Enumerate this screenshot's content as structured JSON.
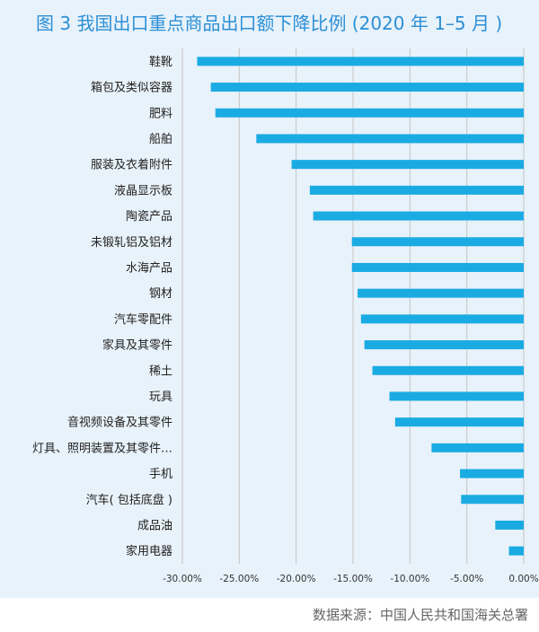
{
  "chart_data": {
    "type": "bar",
    "orientation": "horizontal",
    "title": "图 3  我国出口重点商品出口额下降比例 (2020 年 1–5 月 )",
    "categories": [
      "鞋靴",
      "箱包及类似容器",
      "肥料",
      "船舶",
      "服装及衣着附件",
      "液晶显示板",
      "陶瓷产品",
      "未锻轧铝及铝材",
      "水海产品",
      "钢材",
      "汽车零配件",
      "家具及其零件",
      "稀土",
      "玩具",
      "音视频设备及其零件",
      "灯具、照明装置及其零件…",
      "手机",
      "汽车(包括底盘)",
      "成品油",
      "家用电器"
    ],
    "category_display": [
      "鞋靴",
      "箱包及类似容器",
      "肥料",
      "船舶",
      "服装及衣着附件",
      "液晶显示板",
      "陶瓷产品",
      "未锻轧铝及铝材",
      "水海产品",
      "钢材",
      "汽车零配件",
      "家具及其零件",
      "稀土",
      "玩具",
      "音视频设备及其零件",
      "灯具、照明装置及其零件…",
      "手机",
      "汽车( 包括底盘 )",
      "成品油",
      "家用电器"
    ],
    "values": [
      -28.7,
      -27.5,
      -27.1,
      -23.5,
      -20.4,
      -18.8,
      -18.5,
      -15.1,
      -15.1,
      -14.6,
      -14.3,
      -14.0,
      -13.3,
      -11.8,
      -11.3,
      -8.1,
      -5.6,
      -5.5,
      -2.5,
      -1.3
    ],
    "xlim": [
      -30,
      0
    ],
    "xticks": [
      -30,
      -25,
      -20,
      -15,
      -10,
      -5,
      0
    ],
    "xtick_labels": [
      "-30.00%",
      "-25.00%",
      "-20.00%",
      "-15.00%",
      "-10.00%",
      "-5.00%",
      "0.00%"
    ],
    "grid": true,
    "bar_color": "#1aabe3",
    "xlabel": "",
    "ylabel": ""
  },
  "source_note": "数据来源：中国人民共和国海关总署",
  "colors": {
    "panel_background": "#e8f2fa",
    "title": "#2c8fd6",
    "gridline": "#c4c4c4"
  }
}
